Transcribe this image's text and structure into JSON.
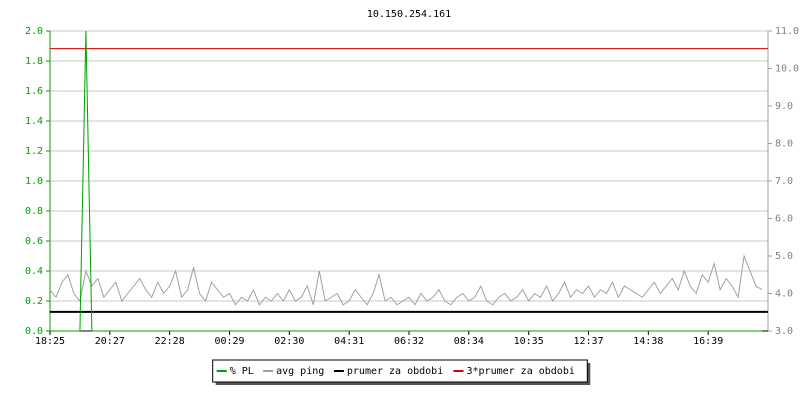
{
  "chart_data": {
    "type": "line",
    "title": "10.150.254.161",
    "categories": [
      "18:25",
      null,
      null,
      null,
      null,
      null,
      null,
      null,
      null,
      null,
      "20:27",
      null,
      null,
      null,
      null,
      null,
      null,
      null,
      null,
      null,
      "22:28",
      null,
      null,
      null,
      null,
      null,
      null,
      null,
      null,
      null,
      "00:29",
      null,
      null,
      null,
      null,
      null,
      null,
      null,
      null,
      null,
      "02:30",
      null,
      null,
      null,
      null,
      null,
      null,
      null,
      null,
      null,
      "04:31",
      null,
      null,
      null,
      null,
      null,
      null,
      null,
      null,
      null,
      "06:32",
      null,
      null,
      null,
      null,
      null,
      null,
      null,
      null,
      null,
      "08:34",
      null,
      null,
      null,
      null,
      null,
      null,
      null,
      null,
      null,
      "10:35",
      null,
      null,
      null,
      null,
      null,
      null,
      null,
      null,
      null,
      "12:37",
      null,
      null,
      null,
      null,
      null,
      null,
      null,
      null,
      null,
      "14:38",
      null,
      null,
      null,
      null,
      null,
      null,
      null,
      null,
      null,
      "16:39",
      null,
      null,
      null,
      null,
      null,
      null,
      null,
      null,
      null
    ],
    "ylim": [
      0,
      2
    ],
    "yticks": [
      {
        "value": 0,
        "label": "0.0"
      },
      0.2,
      0.4,
      0.6,
      0.8,
      {
        "value": 1,
        "label": "1.0"
      },
      1.2,
      1.4,
      1.6,
      1.8,
      {
        "value": 2,
        "label": "2.0"
      }
    ],
    "y2lim": [
      3,
      11
    ],
    "y2ticks": [
      {
        "value": 3,
        "label": "3.0"
      },
      {
        "value": 4,
        "label": "4.0"
      },
      {
        "value": 5,
        "label": "5.0"
      },
      {
        "value": 6,
        "label": "6.0"
      },
      {
        "value": 7,
        "label": "7.0"
      },
      {
        "value": 8,
        "label": "8.0"
      },
      {
        "value": 9,
        "label": "9.0"
      },
      {
        "value": 10,
        "label": "10.0"
      },
      {
        "value": 11,
        "label": "11.0"
      }
    ],
    "grid": true,
    "legend": "bottom",
    "series": [
      {
        "name": "% PL",
        "color": "#00a000",
        "values": [
          0,
          0,
          0,
          0,
          0,
          0,
          2,
          0,
          0,
          0,
          0,
          0,
          0,
          0,
          0,
          0,
          0,
          0,
          0,
          0,
          0,
          0,
          0,
          0,
          0,
          0,
          0,
          0,
          0,
          0,
          0,
          0,
          0,
          0,
          0,
          0,
          0,
          0,
          0,
          0,
          0,
          0,
          0,
          0,
          0,
          0,
          0,
          0,
          0,
          0,
          0,
          0,
          0,
          0,
          0,
          0,
          0,
          0,
          0,
          0,
          0,
          0,
          0,
          0,
          0,
          0,
          0,
          0,
          0,
          0,
          0,
          0,
          0,
          0,
          0,
          0,
          0,
          0,
          0,
          0,
          0,
          0,
          0,
          0,
          0,
          0,
          0,
          0,
          0,
          0,
          0,
          0,
          0,
          0,
          0,
          0,
          0,
          0,
          0,
          0,
          0,
          0,
          0,
          0,
          0,
          0,
          0,
          0,
          0,
          0,
          0,
          0,
          0,
          0,
          0,
          0,
          0,
          0,
          0,
          0
        ]
      },
      {
        "name": "avg ping",
        "color": "#a0a0a0",
        "axis": "y2",
        "values": [
          4.1,
          3.9,
          4.3,
          4.5,
          4.0,
          3.8,
          4.6,
          4.2,
          4.4,
          3.9,
          4.1,
          4.3,
          3.8,
          4.0,
          4.2,
          4.4,
          4.1,
          3.9,
          4.3,
          4.0,
          4.2,
          4.6,
          3.9,
          4.1,
          4.7,
          4.0,
          3.8,
          4.3,
          4.1,
          3.9,
          4.0,
          3.7,
          3.9,
          3.8,
          4.1,
          3.7,
          3.9,
          3.8,
          4.0,
          3.8,
          4.1,
          3.8,
          3.9,
          4.2,
          3.7,
          4.6,
          3.8,
          3.9,
          4.0,
          3.7,
          3.8,
          4.1,
          3.9,
          3.7,
          4.0,
          4.5,
          3.8,
          3.9,
          3.7,
          3.8,
          3.9,
          3.7,
          4.0,
          3.8,
          3.9,
          4.1,
          3.8,
          3.7,
          3.9,
          4.0,
          3.8,
          3.9,
          4.2,
          3.8,
          3.7,
          3.9,
          4.0,
          3.8,
          3.9,
          4.1,
          3.8,
          4.0,
          3.9,
          4.2,
          3.8,
          4.0,
          4.3,
          3.9,
          4.1,
          4.0,
          4.2,
          3.9,
          4.1,
          4.0,
          4.3,
          3.9,
          4.2,
          4.1,
          4.0,
          3.9,
          4.1,
          4.3,
          4.0,
          4.2,
          4.4,
          4.1,
          4.6,
          4.2,
          4.0,
          4.5,
          4.3,
          4.8,
          4.1,
          4.4,
          4.2,
          3.9,
          5.0,
          4.6,
          4.2,
          4.1
        ]
      },
      {
        "name": "prumer za obdobi",
        "color": "#000000",
        "axis": "y2",
        "value": 3.51
      },
      {
        "name": "3*prumer za obdobi",
        "color": "#d00000",
        "axis": "y2",
        "value": 10.53
      }
    ]
  }
}
